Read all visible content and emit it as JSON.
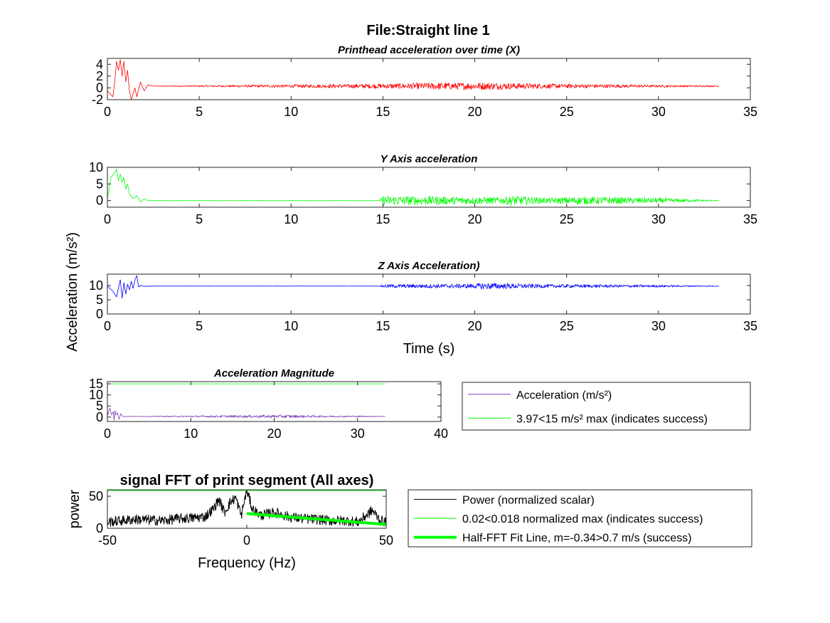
{
  "figure": {
    "title": "File:Straight line 1",
    "shared_ylabel": "Acceleration (m/s²)"
  },
  "chart_data": [
    {
      "type": "line",
      "title": "Printhead acceleration over time (X)",
      "xlabel": "",
      "ylabel": "",
      "xlim": [
        0,
        35
      ],
      "ylim": [
        -2,
        5
      ],
      "xticks": [
        "0",
        "5",
        "10",
        "15",
        "20",
        "25",
        "30",
        "35"
      ],
      "yticks": [
        "-2",
        "0",
        "2",
        "4"
      ],
      "grid": false,
      "color": "#ff0000",
      "series": [
        {
          "segments": [
            {
              "x": [
                0.0,
                0.15,
                0.3,
                0.4,
                0.5,
                0.6,
                0.7,
                0.8,
                0.9,
                1.0,
                1.1,
                1.2,
                1.3,
                1.4,
                1.5,
                1.6,
                1.8,
                2.0,
                2.2,
                2.5
              ],
              "y": [
                -0.5,
                -1.0,
                -1.5,
                1.0,
                4.5,
                3.0,
                4.8,
                2.0,
                4.5,
                1.0,
                3.0,
                -0.5,
                -2.0,
                -1.0,
                0.0,
                -1.5,
                1.0,
                -0.5,
                0.5,
                0.3
              ]
            },
            {
              "x": [
                2.5,
                15.0,
                18.0,
                21.0,
                24.0,
                27.0,
                30.0,
                33.3
              ],
              "y": [
                0.3,
                0.3,
                0.3,
                0.3,
                0.3,
                0.3,
                0.3,
                0.3
              ],
              "noise_amp": [
                0.05,
                0.4,
                0.6,
                0.6,
                0.4,
                0.3,
                0.2,
                0.1
              ]
            }
          ]
        }
      ]
    },
    {
      "type": "line",
      "title": "Y Axis acceleration",
      "xlabel": "",
      "ylabel": "",
      "xlim": [
        0,
        35
      ],
      "ylim": [
        -2,
        10
      ],
      "xticks": [
        "0",
        "5",
        "10",
        "15",
        "20",
        "25",
        "30",
        "35"
      ],
      "yticks": [
        "0",
        "5",
        "10"
      ],
      "grid": false,
      "color": "#00ff00",
      "series": [
        {
          "segments": [
            {
              "x": [
                0.0,
                0.2,
                0.4,
                0.5,
                0.6,
                0.7,
                0.8,
                0.9,
                1.0,
                1.1,
                1.2,
                1.4,
                1.6,
                1.8,
                2.0,
                2.2
              ],
              "y": [
                0.5,
                7.0,
                8.5,
                9.5,
                6.0,
                8.0,
                5.5,
                7.0,
                3.5,
                5.0,
                2.0,
                0.5,
                1.5,
                -0.5,
                0.5,
                0.0
              ]
            },
            {
              "x": [
                2.2,
                14.8,
                15.0,
                19.0,
                21.5,
                22.0,
                24.0,
                25.7,
                30.0,
                33.3
              ],
              "y": [
                0.0,
                0.0,
                0.0,
                0.0,
                0.0,
                0.0,
                0.0,
                0.0,
                0.0,
                0.0
              ],
              "noise_amp": [
                0.05,
                0.05,
                1.5,
                1.2,
                1.0,
                1.5,
                0.8,
                1.2,
                0.8,
                0.1
              ]
            }
          ]
        }
      ]
    },
    {
      "type": "line",
      "title": "Z Axis Acceleration)",
      "xlabel": "Time (s)",
      "ylabel": "",
      "xlim": [
        0,
        35
      ],
      "ylim": [
        0,
        14
      ],
      "xticks": [
        "0",
        "5",
        "10",
        "15",
        "20",
        "25",
        "30",
        "35"
      ],
      "yticks": [
        "0",
        "5",
        "10"
      ],
      "grid": false,
      "color": "#0000ff",
      "series": [
        {
          "segments": [
            {
              "x": [
                0.0,
                0.3,
                0.5,
                0.7,
                0.8,
                0.9,
                1.0,
                1.1,
                1.2,
                1.3,
                1.4,
                1.5,
                1.6,
                1.7,
                1.8,
                2.0,
                2.4
              ],
              "y": [
                9.8,
                8.0,
                6.0,
                12.0,
                5.5,
                11.0,
                7.0,
                10.5,
                8.5,
                11.5,
                9.0,
                12.0,
                13.5,
                9.5,
                10.0,
                9.7,
                9.8
              ]
            },
            {
              "x": [
                2.4,
                14.8,
                15.0,
                20.0,
                20.5,
                21.5,
                24.0,
                25.7,
                30.0,
                33.3
              ],
              "y": [
                9.8,
                9.8,
                9.8,
                9.8,
                9.8,
                9.8,
                9.8,
                9.8,
                9.8,
                9.8
              ],
              "noise_amp": [
                0.05,
                0.05,
                0.6,
                0.8,
                1.2,
                1.0,
                0.6,
                0.6,
                0.4,
                0.1
              ]
            }
          ]
        }
      ]
    },
    {
      "type": "line",
      "title": "Acceleration Magnitude",
      "xlabel": "",
      "ylabel": "",
      "xlim": [
        0,
        40
      ],
      "ylim": [
        -2,
        16
      ],
      "xticks": [
        "0",
        "10",
        "20",
        "30",
        "40"
      ],
      "yticks": [
        "0",
        "5",
        "10",
        "15"
      ],
      "grid": false,
      "legend": "right",
      "series": [
        {
          "name": "Acceleration (m/s²)",
          "color": "#7b3fb3",
          "segments": [
            {
              "x": [
                0.0,
                0.3,
                0.5,
                0.7,
                0.8,
                0.9,
                1.0,
                1.2,
                1.4,
                1.6,
                1.8,
                2.0,
                2.5
              ],
              "y": [
                0.5,
                4.0,
                1.0,
                2.5,
                -1.5,
                3.0,
                1.0,
                2.0,
                -1.0,
                1.5,
                0.5,
                0.2,
                0.3
              ]
            },
            {
              "x": [
                2.5,
                15.0,
                18.0,
                21.0,
                24.0,
                27.0,
                30.0,
                33.3
              ],
              "y": [
                0.3,
                0.3,
                0.3,
                0.3,
                0.3,
                0.3,
                0.3,
                0.3
              ],
              "noise_amp": [
                0.05,
                0.5,
                0.6,
                0.7,
                0.5,
                0.4,
                0.3,
                0.1
              ]
            }
          ]
        },
        {
          "name": "3.97<15 m/s² max (indicates success)",
          "color": "#00ff00",
          "segments": [
            {
              "x": [
                0.0,
                33.3
              ],
              "y": [
                15,
                15
              ]
            }
          ]
        }
      ]
    },
    {
      "type": "line",
      "title": "signal FFT of print segment (All axes)",
      "xlabel": "Frequency (Hz)",
      "ylabel": "power",
      "xlim": [
        -50,
        50
      ],
      "ylim": [
        0,
        60
      ],
      "xticks": [
        "-50",
        "0",
        "50"
      ],
      "yticks": [
        "0",
        "50"
      ],
      "grid": false,
      "legend": "right",
      "series": [
        {
          "name": "Power (normalized scalar)",
          "color": "#000000",
          "width": 1,
          "segments": [
            {
              "x": [
                -50,
                -45,
                -40,
                -35,
                -30,
                -25,
                -20,
                -15,
                -12,
                -10,
                -8,
                -6,
                -4,
                -2,
                0,
                2,
                5,
                10,
                15,
                20,
                25,
                30,
                35,
                40,
                45,
                48,
                50
              ],
              "y": [
                10,
                12,
                14,
                13,
                12,
                15,
                16,
                18,
                30,
                45,
                25,
                40,
                48,
                20,
                60,
                30,
                20,
                25,
                18,
                15,
                14,
                12,
                12,
                10,
                28,
                12,
                10
              ],
              "noise_amp": [
                8,
                8,
                8,
                8,
                8,
                8,
                8,
                8,
                8,
                8,
                8,
                8,
                8,
                8,
                8,
                8,
                8,
                8,
                8,
                8,
                8,
                8,
                8,
                8,
                8,
                8,
                8
              ]
            }
          ]
        },
        {
          "name": "0.02<0.018 normalized max (indicates success)",
          "color": "#00ff00",
          "width": 1,
          "segments": [
            {
              "x": [
                -50,
                50
              ],
              "y": [
                59,
                59
              ]
            }
          ]
        },
        {
          "name": "Half-FFT Fit Line, m=-0.34>0.7 m/s (success)",
          "color": "#00ff00",
          "width": 4,
          "segments": [
            {
              "x": [
                0,
                50
              ],
              "y": [
                23,
                6
              ]
            }
          ]
        }
      ]
    }
  ]
}
